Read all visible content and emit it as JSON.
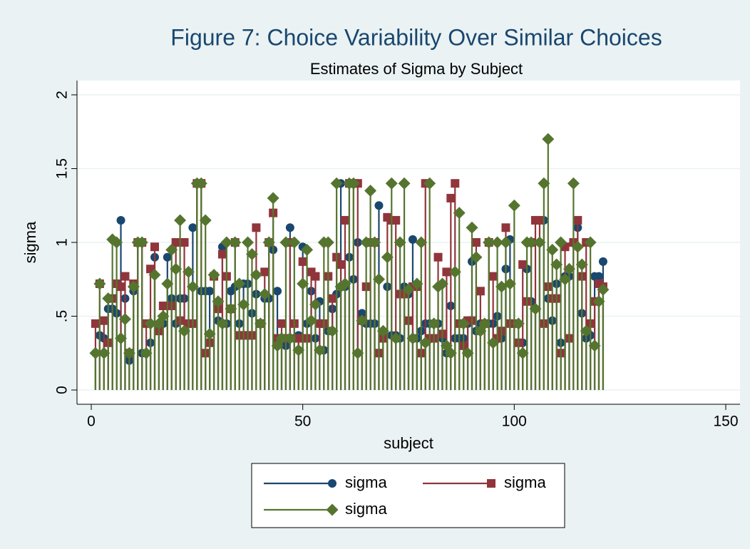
{
  "chart_data": {
    "type": "dropline",
    "title": "Figure 7: Choice Variability Over Similar Choices",
    "subtitle": "Estimates of Sigma by Subject",
    "xlabel": "subject",
    "ylabel": "sigma",
    "xlim": [
      0,
      150
    ],
    "xticks": [
      0,
      50,
      100,
      150
    ],
    "ylim": [
      0,
      2
    ],
    "yticks": [
      0,
      {
        "value": 0.5,
        "label": ".5"
      },
      1,
      {
        "value": 1.5,
        "label": "1.5"
      },
      2
    ],
    "grid": true,
    "x": [
      1,
      2,
      3,
      4,
      5,
      6,
      7,
      8,
      9,
      10,
      11,
      12,
      13,
      14,
      15,
      16,
      17,
      18,
      19,
      20,
      21,
      22,
      23,
      24,
      25,
      26,
      27,
      28,
      29,
      30,
      31,
      32,
      33,
      34,
      35,
      36,
      37,
      38,
      39,
      40,
      41,
      42,
      43,
      44,
      45,
      46,
      47,
      48,
      49,
      50,
      51,
      52,
      53,
      54,
      55,
      56,
      57,
      58,
      59,
      60,
      61,
      62,
      63,
      64,
      65,
      66,
      67,
      68,
      69,
      70,
      71,
      72,
      73,
      74,
      75,
      76,
      77,
      78,
      79,
      80,
      81,
      82,
      83,
      84,
      85,
      86,
      87,
      88,
      89,
      90,
      91,
      92,
      93,
      94,
      95,
      96,
      97,
      98,
      99,
      100,
      101,
      102,
      103,
      104,
      105,
      106,
      107,
      108,
      109,
      110,
      111,
      112,
      113,
      114,
      115,
      116,
      117,
      118,
      119,
      120,
      121
    ],
    "series": [
      {
        "name": "sigma",
        "color": "#1a476f",
        "marker": "circle",
        "values": [
          0.25,
          0.37,
          0.35,
          0.55,
          0.55,
          0.52,
          1.15,
          0.62,
          0.2,
          0.67,
          1.0,
          0.25,
          0.25,
          0.32,
          0.9,
          0.45,
          0.45,
          0.9,
          0.62,
          0.45,
          0.62,
          0.62,
          0.45,
          1.1,
          1.4,
          0.67,
          0.67,
          0.67,
          0.77,
          0.47,
          0.97,
          0.45,
          0.67,
          0.7,
          0.45,
          0.72,
          0.72,
          0.52,
          0.65,
          0.45,
          0.62,
          0.62,
          0.95,
          0.67,
          0.35,
          0.3,
          1.1,
          0.35,
          0.37,
          0.97,
          0.45,
          0.67,
          0.35,
          0.6,
          0.27,
          0.4,
          0.55,
          0.65,
          1.4,
          0.7,
          0.9,
          0.75,
          1.0,
          0.52,
          0.45,
          0.45,
          0.45,
          1.25,
          0.4,
          0.7,
          0.37,
          0.37,
          0.35,
          0.7,
          0.65,
          1.02,
          0.35,
          0.4,
          0.45,
          0.45,
          0.35,
          0.45,
          0.35,
          0.25,
          0.57,
          0.35,
          0.35,
          0.35,
          0.45,
          0.87,
          0.4,
          0.45,
          0.45,
          0.45,
          0.45,
          0.5,
          0.35,
          0.82,
          1.02,
          0.45,
          0.32,
          0.32,
          0.82,
          0.6,
          0.55,
          1.0,
          1.15,
          0.62,
          0.47,
          0.72,
          0.32,
          0.77,
          0.77,
          1.0,
          1.1,
          0.52,
          0.35,
          0.37,
          0.77,
          0.77,
          0.87
        ]
      },
      {
        "name": "sigma",
        "color": "#90353b",
        "marker": "square",
        "values": [
          0.45,
          0.72,
          0.47,
          0.32,
          0.62,
          0.72,
          0.7,
          0.77,
          0.25,
          0.72,
          1.0,
          1.0,
          0.45,
          0.82,
          0.97,
          0.4,
          0.57,
          0.57,
          0.57,
          1.0,
          0.47,
          1.0,
          0.45,
          0.45,
          1.4,
          1.4,
          0.25,
          0.32,
          0.77,
          0.55,
          0.92,
          0.77,
          0.55,
          1.0,
          0.37,
          0.37,
          0.37,
          0.37,
          1.1,
          0.45,
          0.8,
          1.0,
          1.2,
          0.35,
          0.45,
          0.35,
          1.0,
          0.45,
          0.35,
          0.87,
          0.35,
          0.8,
          0.77,
          0.45,
          0.45,
          0.77,
          0.62,
          0.9,
          0.85,
          1.15,
          1.4,
          1.4,
          1.4,
          0.47,
          0.7,
          1.0,
          1.0,
          0.25,
          0.35,
          1.17,
          1.15,
          1.15,
          0.65,
          0.65,
          0.47,
          0.7,
          0.7,
          0.25,
          1.4,
          0.35,
          0.35,
          0.9,
          0.38,
          0.8,
          1.3,
          1.4,
          0.45,
          0.3,
          0.47,
          0.47,
          1.0,
          0.67,
          0.45,
          1.0,
          0.77,
          0.35,
          0.4,
          1.1,
          0.45,
          0.45,
          0.32,
          0.85,
          0.6,
          1.0,
          1.15,
          1.15,
          0.45,
          0.7,
          0.62,
          0.62,
          0.25,
          0.97,
          0.35,
          1.0,
          1.15,
          0.77,
          1.0,
          0.45,
          0.6,
          0.72,
          0.7
        ]
      },
      {
        "name": "sigma",
        "color": "#55752f",
        "marker": "diamond",
        "values": [
          0.25,
          0.72,
          0.25,
          0.62,
          1.02,
          1.0,
          0.35,
          0.48,
          0.25,
          0.7,
          1.0,
          1.0,
          0.25,
          0.45,
          0.78,
          0.45,
          0.5,
          0.72,
          0.95,
          0.82,
          1.15,
          0.4,
          0.8,
          0.7,
          1.4,
          1.4,
          1.15,
          0.38,
          0.78,
          0.6,
          0.45,
          1.0,
          0.55,
          1.0,
          0.72,
          0.58,
          1.0,
          0.92,
          0.78,
          0.45,
          0.65,
          1.0,
          1.3,
          0.3,
          0.35,
          1.0,
          0.35,
          1.0,
          0.27,
          0.72,
          0.95,
          0.47,
          0.58,
          0.27,
          1.0,
          1.0,
          0.4,
          1.4,
          0.7,
          0.72,
          1.4,
          1.4,
          0.25,
          0.47,
          1.0,
          1.35,
          1.0,
          0.75,
          0.4,
          0.9,
          1.4,
          0.35,
          1.0,
          1.4,
          0.68,
          0.35,
          0.72,
          1.0,
          0.32,
          1.4,
          0.45,
          0.7,
          0.72,
          0.3,
          0.25,
          0.8,
          1.2,
          0.45,
          0.25,
          1.1,
          0.9,
          0.4,
          0.45,
          1.0,
          0.32,
          1.0,
          0.7,
          1.0,
          0.72,
          1.25,
          0.45,
          0.25,
          1.0,
          1.0,
          0.55,
          1.0,
          1.4,
          1.7,
          0.95,
          0.85,
          1.0,
          0.75,
          0.82,
          1.4,
          0.97,
          0.85,
          0.4,
          1.0,
          0.3,
          0.6,
          0.68
        ]
      }
    ]
  }
}
